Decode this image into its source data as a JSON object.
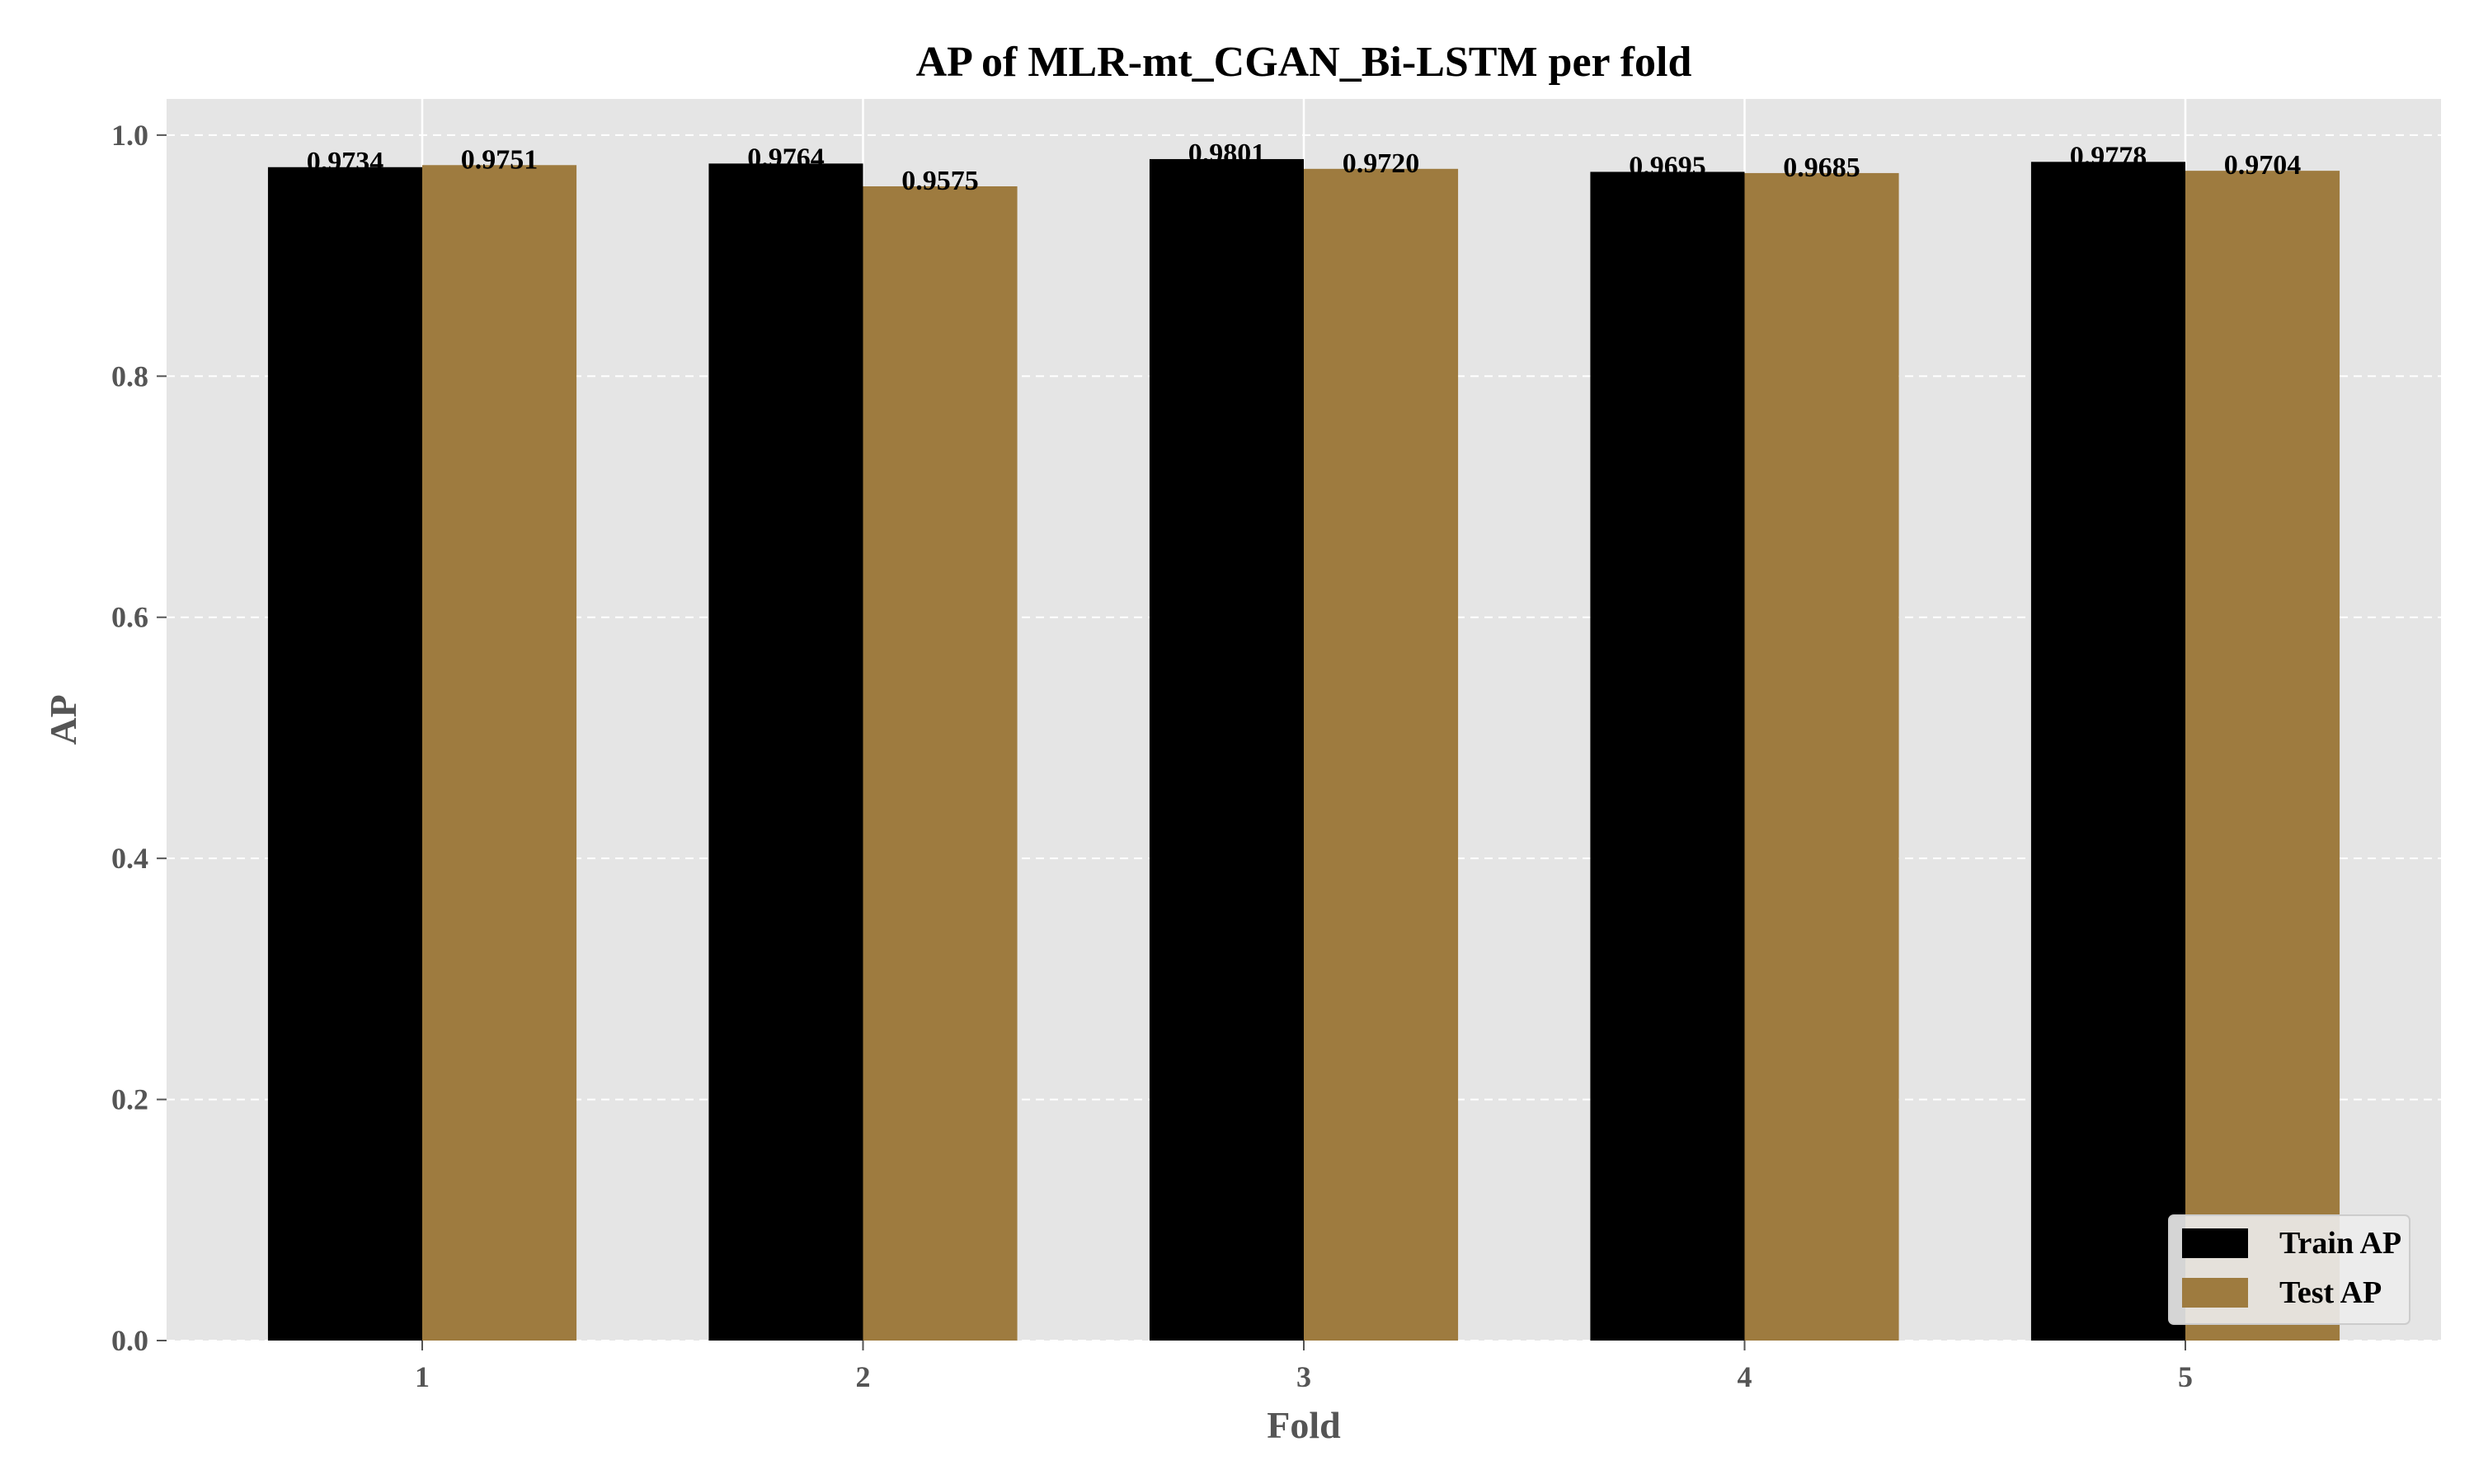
{
  "chart_data": {
    "type": "bar",
    "title": "AP of MLR-mt_CGAN_Bi-LSTM per fold",
    "xlabel": "Fold",
    "ylabel": "AP",
    "categories": [
      "1",
      "2",
      "3",
      "4",
      "5"
    ],
    "ylim": [
      0,
      1.03
    ],
    "yticks": [
      0.0,
      0.2,
      0.4,
      0.6,
      0.8,
      1.0
    ],
    "ytick_labels": [
      "0.0",
      "0.2",
      "0.4",
      "0.6",
      "0.8",
      "1.0"
    ],
    "grid": true,
    "legend_position": "bottom-right",
    "series": [
      {
        "name": "Train AP",
        "color": "#000000",
        "values": [
          0.9734,
          0.9764,
          0.9801,
          0.9695,
          0.9778
        ],
        "labels": [
          "0.9734",
          "0.9764",
          "0.9801",
          "0.9695",
          "0.9778"
        ]
      },
      {
        "name": "Test AP",
        "color": "#9e7b3f",
        "values": [
          0.9751,
          0.9575,
          0.972,
          0.9685,
          0.9704
        ],
        "labels": [
          "0.9751",
          "0.9575",
          "0.9720",
          "0.9685",
          "0.9704"
        ]
      }
    ]
  }
}
